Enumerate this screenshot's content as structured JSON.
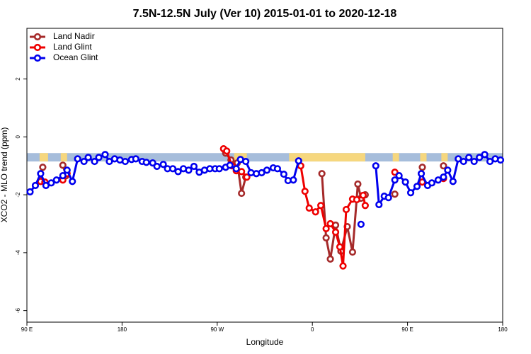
{
  "chart_data": {
    "type": "line",
    "title": "7.5N-12.5N July (Ver 10)   2015-01-01 to 2020-12-18",
    "x_label": "Longitude",
    "y_label": "XCO2 - MLO trend (ppm)",
    "xlim": [
      90,
      540
    ],
    "ylim": [
      -6.4,
      3.75
    ],
    "xticks": [
      {
        "value": 90,
        "label": "90 E"
      },
      {
        "value": 180,
        "label": "180"
      },
      {
        "value": 270,
        "label": "90 W"
      },
      {
        "value": 360,
        "label": "0"
      },
      {
        "value": 450,
        "label": "90 E"
      },
      {
        "value": 540,
        "label": "180"
      }
    ],
    "yticks": [
      -6,
      -4,
      -2,
      0,
      2
    ],
    "legend": "top-left",
    "band": {
      "range": [
        -0.85,
        -0.56
      ],
      "color": "#a6bddb",
      "land_color": "#f6d77e",
      "land": [
        [
          102,
          110
        ],
        [
          122,
          128
        ],
        [
          286,
          298
        ],
        [
          338,
          410
        ],
        [
          436,
          442
        ],
        [
          462,
          468
        ],
        [
          482,
          488
        ]
      ]
    },
    "series": [
      {
        "name": "Land Nadir",
        "color": "#a52a2a",
        "x": [
          103,
          105,
          null,
          124,
          127,
          null,
          278,
          283,
          289,
          293,
          297,
          null,
          369,
          373,
          377,
          382,
          387,
          393,
          398,
          403,
          406,
          410,
          null,
          438,
          null,
          464,
          null,
          484
        ],
        "values": [
          -1.54,
          -1.05,
          null,
          -0.98,
          -1.34,
          null,
          -0.56,
          -0.8,
          -0.9,
          -1.95,
          -1.39,
          null,
          -1.27,
          -3.49,
          -4.22,
          -3.05,
          -3.95,
          -3.1,
          -3.98,
          -1.63,
          -2.12,
          -2.0,
          null,
          -1.98,
          null,
          -1.05,
          null,
          -1.0
        ]
      },
      {
        "name": "Land Glint",
        "color": "#ee0000",
        "x": [
          103,
          107,
          null,
          124,
          128,
          null,
          276,
          279,
          284,
          288,
          293,
          298,
          null,
          349,
          353,
          357,
          363,
          368,
          373,
          377,
          382,
          386,
          389,
          392,
          398,
          402,
          408,
          410,
          null,
          438,
          null,
          464,
          null,
          484
        ],
        "values": [
          -1.54,
          -1.56,
          null,
          -1.49,
          -1.27,
          null,
          -0.41,
          -0.49,
          -1.0,
          -1.17,
          -1.2,
          -1.39,
          null,
          -1.0,
          -1.88,
          -2.46,
          -2.59,
          -2.37,
          -3.17,
          -3.0,
          -3.29,
          -3.8,
          -4.46,
          -2.51,
          -2.15,
          -2.17,
          -2.02,
          -2.37,
          null,
          -1.22,
          null,
          -1.56,
          null,
          -1.44
        ]
      },
      {
        "name": "Ocean Glint",
        "color": "#0000ee",
        "x": [
          93,
          98,
          103,
          108,
          113,
          118,
          124,
          128,
          133,
          138,
          144,
          148,
          154,
          158,
          164,
          168,
          173,
          178,
          183,
          189,
          193,
          199,
          203,
          209,
          213,
          219,
          223,
          228,
          233,
          238,
          243,
          248,
          253,
          258,
          263,
          268,
          272,
          278,
          282,
          288,
          292,
          297,
          302,
          307,
          312,
          317,
          323,
          327,
          333,
          337,
          342,
          347,
          null,
          406,
          null,
          420,
          423,
          428,
          432,
          438,
          442,
          448,
          453,
          459,
          463,
          469,
          473,
          479,
          484,
          488,
          493,
          498,
          503,
          508,
          513,
          518,
          523,
          528,
          533,
          538
        ],
        "values": [
          -1.9,
          -1.68,
          -1.27,
          -1.68,
          -1.59,
          -1.49,
          -1.34,
          -1.15,
          -1.54,
          -0.76,
          -0.85,
          -0.71,
          -0.85,
          -0.71,
          -0.61,
          -0.85,
          -0.76,
          -0.8,
          -0.85,
          -0.78,
          -0.76,
          -0.85,
          -0.88,
          -0.9,
          -1.02,
          -0.95,
          -1.1,
          -1.1,
          -1.2,
          -1.1,
          -1.15,
          -1.02,
          -1.22,
          -1.15,
          -1.1,
          -1.1,
          -1.1,
          -1.05,
          -0.98,
          -1.1,
          -0.78,
          -0.85,
          -1.24,
          -1.27,
          -1.24,
          -1.15,
          -1.07,
          -1.1,
          -1.29,
          -1.51,
          -1.49,
          -0.83,
          null,
          -3.02,
          null,
          -1.0,
          -2.34,
          -2.05,
          -2.1,
          -1.49,
          -1.34,
          -1.56,
          -1.93,
          -1.71,
          -1.27,
          -1.68,
          -1.59,
          -1.49,
          -1.39,
          -1.15,
          -1.54,
          -0.76,
          -0.85,
          -0.71,
          -0.85,
          -0.71,
          -0.61,
          -0.85,
          -0.76,
          -0.8
        ]
      }
    ]
  }
}
